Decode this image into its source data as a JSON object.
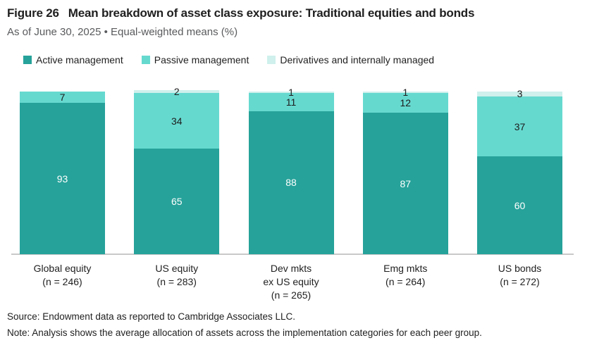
{
  "header": {
    "figure_label": "Figure 26",
    "title": "Mean breakdown of asset class exposure: Traditional equities and bonds",
    "subtitle": "As of June 30, 2025 • Equal-weighted means (%)"
  },
  "chart_data": {
    "type": "bar",
    "variant": "stacked-vertical",
    "unit": "%",
    "ylim": [
      0,
      100
    ],
    "grid": false,
    "legend_position": "top-left",
    "categories": [
      {
        "lines": [
          "Global equity"
        ],
        "n": "(n = 246)"
      },
      {
        "lines": [
          "US equity"
        ],
        "n": "(n = 283)"
      },
      {
        "lines": [
          "Dev mkts",
          "ex US equity"
        ],
        "n": "(n = 265)"
      },
      {
        "lines": [
          "Emg mkts"
        ],
        "n": "(n = 264)"
      },
      {
        "lines": [
          "US bonds"
        ],
        "n": "(n = 272)"
      }
    ],
    "series": [
      {
        "name": "Active management",
        "color": "#26a29a",
        "label_color": "#ffffff",
        "values": [
          93,
          65,
          88,
          87,
          60
        ]
      },
      {
        "name": "Passive management",
        "color": "#66d9cf",
        "label_color": "#1c1c1c",
        "values": [
          7,
          34,
          11,
          12,
          37
        ]
      },
      {
        "name": "Derivatives and internally managed",
        "color": "#cff0ec",
        "label_color": "#1c1c1c",
        "values": [
          0,
          2,
          1,
          1,
          3
        ]
      }
    ]
  },
  "footer": {
    "source": "Source: Endowment data as reported to Cambridge Associates LLC.",
    "note": "Note: Analysis shows the average allocation of assets across the implementation categories for each peer group."
  }
}
